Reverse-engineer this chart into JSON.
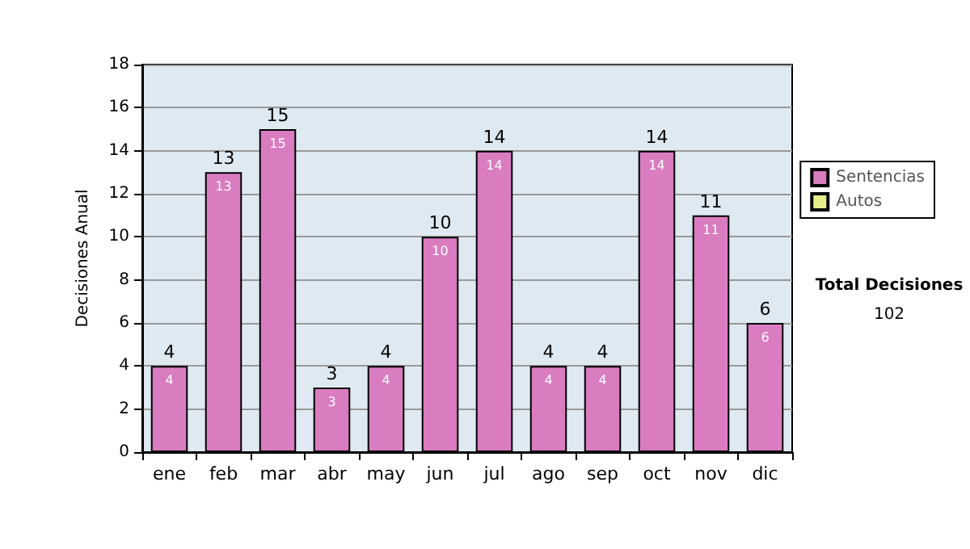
{
  "chart_data": {
    "type": "bar",
    "ylabel": "Decisiones Anual",
    "categories": [
      "ene",
      "feb",
      "mar",
      "abr",
      "may",
      "jun",
      "jul",
      "ago",
      "sep",
      "oct",
      "nov",
      "dic"
    ],
    "series": [
      {
        "name": "Sentencias",
        "color": "#d97cc0",
        "values": [
          4,
          13,
          15,
          3,
          4,
          10,
          14,
          4,
          4,
          14,
          11,
          6
        ],
        "value_labels": [
          "4",
          "13",
          "15",
          "3",
          "4",
          "10",
          "14",
          "4",
          "4",
          "14",
          "11",
          "6"
        ]
      },
      {
        "name": "Autos",
        "color": "#e6ee8a",
        "values": [
          null,
          null,
          null,
          null,
          null,
          null,
          null,
          null,
          null,
          null,
          null,
          null
        ]
      }
    ],
    "stacked": true,
    "totals": [
      "4",
      "13",
      "15",
      "3",
      "4",
      "10",
      "14",
      "4",
      "4",
      "14",
      "11",
      "6"
    ],
    "ylim": [
      0,
      18
    ],
    "yticks": [
      0,
      2,
      4,
      6,
      8,
      10,
      12,
      14,
      16,
      18
    ],
    "grid": "y",
    "legend": "right",
    "annotations": [
      "Total Decisiones",
      "102"
    ]
  }
}
